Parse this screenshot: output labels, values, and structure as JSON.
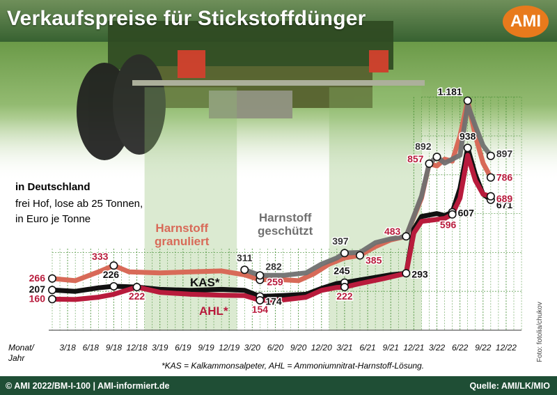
{
  "title": "Verkaufspreise für Stickstoffdünger",
  "logo": "AMI",
  "subtitle": {
    "region": "in Deutschland",
    "line1": "frei Hof, lose ab 25 Tonnen,",
    "line2": "in Euro je Tonne"
  },
  "footnote": "*KAS = Kalkammonsalpeter, AHL = Ammoniumnitrat-Harnstoff-Lösung.",
  "axis_title": {
    "line1": "Monat/",
    "line2": "Jahr"
  },
  "footer": {
    "left": "© AMI 2022/BM-I-100 | AMI-informiert.de",
    "right": "Quelle: AMI/LK/MIO"
  },
  "photo_credit": "Foto: fotolia/chukov",
  "colors": {
    "harnstoff_granuliert": "#d86a58",
    "harnstoff_geschuetzt": "#707070",
    "kas": "#111111",
    "ahl": "#b81b3c",
    "background": "#ffffff",
    "grid": "#3e8a2c",
    "label_dark": "#9a1436"
  },
  "chart_data": {
    "type": "line",
    "title": "Verkaufspreise für Stickstoffdünger",
    "xlabel": "Monat/ Jahr",
    "ylabel": "",
    "x_ticks": [
      "3/18",
      "6/18",
      "9/18",
      "12/18",
      "3/19",
      "6/19",
      "9/19",
      "12/19",
      "3/20",
      "6/20",
      "9/20",
      "12/20",
      "3/21",
      "6/21",
      "9/21",
      "12/21",
      "3/22",
      "6/22",
      "9/22",
      "12/22"
    ],
    "x_domain": [
      0,
      60
    ],
    "ylim": [
      0,
      1250
    ],
    "grid": true,
    "series": [
      {
        "name": "Harnstoff granuliert",
        "label": [
          "Harnstoff",
          "granuliert"
        ],
        "color": "#d86a58",
        "points": [
          [
            0,
            266
          ],
          [
            3,
            255
          ],
          [
            6,
            300
          ],
          [
            8,
            333
          ],
          [
            10,
            300
          ],
          [
            14,
            295
          ],
          [
            18,
            300
          ],
          [
            22,
            305
          ],
          [
            25,
            285
          ],
          [
            27,
            259
          ],
          [
            29,
            262
          ],
          [
            32,
            255
          ],
          [
            34,
            290
          ],
          [
            36,
            340
          ],
          [
            38,
            372
          ],
          [
            40,
            385
          ],
          [
            42,
            430
          ],
          [
            44,
            465
          ],
          [
            46,
            483
          ],
          [
            48,
            680
          ],
          [
            49,
            857
          ],
          [
            50,
            845
          ],
          [
            51,
            880
          ],
          [
            52,
            870
          ],
          [
            53,
            1000
          ],
          [
            54,
            1181
          ],
          [
            55,
            1000
          ],
          [
            56,
            860
          ],
          [
            57,
            786
          ]
        ]
      },
      {
        "name": "Harnstoff geschützt",
        "label": [
          "Harnstoff",
          "geschützt"
        ],
        "color": "#707070",
        "points": [
          [
            25,
            311
          ],
          [
            27,
            282
          ],
          [
            30,
            282
          ],
          [
            33,
            295
          ],
          [
            35,
            340
          ],
          [
            37,
            372
          ],
          [
            38,
            397
          ],
          [
            40,
            400
          ],
          [
            42,
            450
          ],
          [
            44,
            470
          ],
          [
            46,
            483
          ],
          [
            48,
            690
          ],
          [
            49,
            857
          ],
          [
            50,
            892
          ],
          [
            51,
            860
          ],
          [
            52,
            880
          ],
          [
            53,
            900
          ],
          [
            54,
            1160
          ],
          [
            55,
            1050
          ],
          [
            56,
            950
          ],
          [
            57,
            897
          ]
        ]
      },
      {
        "name": "KAS*",
        "label": [
          "KAS*"
        ],
        "color": "#111111",
        "points": [
          [
            0,
            207
          ],
          [
            3,
            200
          ],
          [
            6,
            218
          ],
          [
            8,
            226
          ],
          [
            11,
            222
          ],
          [
            14,
            210
          ],
          [
            18,
            205
          ],
          [
            22,
            210
          ],
          [
            25,
            205
          ],
          [
            27,
            174
          ],
          [
            30,
            178
          ],
          [
            33,
            185
          ],
          [
            35,
            215
          ],
          [
            37,
            240
          ],
          [
            38,
            245
          ],
          [
            41,
            265
          ],
          [
            44,
            285
          ],
          [
            46,
            293
          ],
          [
            47,
            520
          ],
          [
            48,
            585
          ],
          [
            50,
            600
          ],
          [
            51,
            590
          ],
          [
            52,
            607
          ],
          [
            53,
            730
          ],
          [
            54,
            938
          ],
          [
            55,
            800
          ],
          [
            56,
            700
          ],
          [
            57,
            671
          ]
        ]
      },
      {
        "name": "AHL*",
        "label": [
          "AHL*"
        ],
        "color": "#b81b3c",
        "points": [
          [
            0,
            160
          ],
          [
            3,
            158
          ],
          [
            6,
            170
          ],
          [
            8,
            185
          ],
          [
            11,
            222
          ],
          [
            14,
            195
          ],
          [
            18,
            185
          ],
          [
            22,
            180
          ],
          [
            25,
            178
          ],
          [
            27,
            154
          ],
          [
            30,
            156
          ],
          [
            33,
            170
          ],
          [
            35,
            205
          ],
          [
            37,
            220
          ],
          [
            38,
            222
          ],
          [
            40,
            240
          ],
          [
            43,
            265
          ],
          [
            46,
            293
          ],
          [
            47,
            500
          ],
          [
            48,
            560
          ],
          [
            50,
            570
          ],
          [
            51,
            575
          ],
          [
            52,
            596
          ],
          [
            53,
            680
          ],
          [
            54,
            900
          ],
          [
            55,
            770
          ],
          [
            56,
            700
          ],
          [
            57,
            689
          ]
        ]
      }
    ],
    "data_labels": [
      {
        "text": "266",
        "x": 0,
        "y": 266,
        "series": 0
      },
      {
        "text": "333",
        "x": 8,
        "y": 333,
        "series": 0
      },
      {
        "text": "259",
        "x": 27,
        "y": 259,
        "series": 0
      },
      {
        "text": "385",
        "x": 40,
        "y": 385,
        "series": 0
      },
      {
        "text": "483",
        "x": 46,
        "y": 483,
        "series": 0
      },
      {
        "text": "857",
        "x": 49,
        "y": 857,
        "series": 0
      },
      {
        "text": "1.181",
        "x": 54,
        "y": 1181,
        "series": 0
      },
      {
        "text": "786",
        "x": 57,
        "y": 786,
        "series": 0
      },
      {
        "text": "311",
        "x": 25,
        "y": 311,
        "series": 1
      },
      {
        "text": "282",
        "x": 27,
        "y": 282,
        "series": 1
      },
      {
        "text": "397",
        "x": 38,
        "y": 397,
        "series": 1
      },
      {
        "text": "892",
        "x": 50,
        "y": 892,
        "series": 1
      },
      {
        "text": "897",
        "x": 57,
        "y": 897,
        "series": 1
      },
      {
        "text": "207",
        "x": 0,
        "y": 207,
        "series": 2
      },
      {
        "text": "226",
        "x": 8,
        "y": 226,
        "series": 2
      },
      {
        "text": "174",
        "x": 27,
        "y": 174,
        "series": 2
      },
      {
        "text": "245",
        "x": 38,
        "y": 245,
        "series": 2
      },
      {
        "text": "293",
        "x": 46,
        "y": 293,
        "series": 2
      },
      {
        "text": "607",
        "x": 52,
        "y": 607,
        "series": 2
      },
      {
        "text": "938",
        "x": 54,
        "y": 938,
        "series": 2
      },
      {
        "text": "671",
        "x": 57,
        "y": 671,
        "series": 2
      },
      {
        "text": "160",
        "x": 0,
        "y": 160,
        "series": 3
      },
      {
        "text": "222",
        "x": 11,
        "y": 222,
        "series": 3
      },
      {
        "text": "154",
        "x": 27,
        "y": 154,
        "series": 3
      },
      {
        "text": "222",
        "x": 38,
        "y": 222,
        "series": 3
      },
      {
        "text": "596",
        "x": 52,
        "y": 596,
        "series": 3
      },
      {
        "text": "689",
        "x": 57,
        "y": 689,
        "series": 3
      }
    ]
  }
}
